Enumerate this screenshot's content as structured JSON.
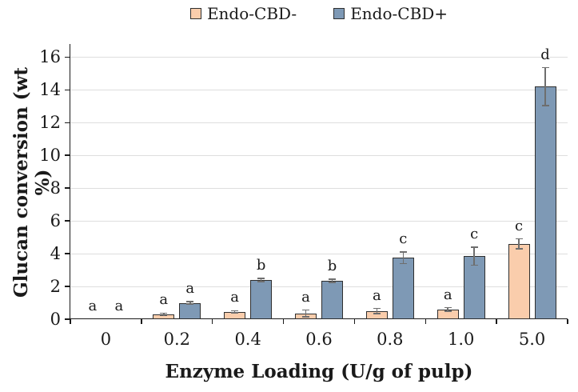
{
  "chart_data": {
    "type": "bar",
    "title": "",
    "categories": [
      "0",
      "0.2",
      "0.4",
      "0.6",
      "0.8",
      "1.0",
      "5.0"
    ],
    "series": [
      {
        "name": "Endo-CBD-",
        "color": "#FACDAC",
        "values": [
          0,
          0.3,
          0.45,
          0.35,
          0.5,
          0.6,
          4.6
        ],
        "errors": [
          0,
          0.07,
          0.07,
          0.2,
          0.15,
          0.1,
          0.3
        ],
        "sig_letters": [
          "a",
          "a",
          "a",
          "a",
          "a",
          "a",
          "c"
        ]
      },
      {
        "name": "Endo-CBD+",
        "color": "#7E99B5",
        "values": [
          0,
          1.0,
          2.4,
          2.35,
          3.75,
          3.85,
          14.2
        ],
        "errors": [
          0,
          0.07,
          0.1,
          0.1,
          0.35,
          0.55,
          1.15
        ],
        "sig_letters": [
          "a",
          "a",
          "b",
          "b",
          "c",
          "c",
          "d"
        ]
      }
    ],
    "xlabel": "Enzyme Loading (U/g of pulp)",
    "ylabel": "Glucan conversion (wt %)",
    "ylim": [
      0,
      16.8
    ],
    "yticks": [
      0,
      2,
      4,
      6,
      8,
      10,
      12,
      14,
      16
    ],
    "grid": "horizontal",
    "legend_position": "top-center",
    "error_bars": true
  },
  "style": {
    "bar_border_color": "#2F2F2F",
    "error_bar_color": "#6E6E6E",
    "gridline_color": "#DEDEDE",
    "axis_color": "#1a1a1a",
    "text_color": "#1a1a1a",
    "background": "#FFFFFF"
  }
}
